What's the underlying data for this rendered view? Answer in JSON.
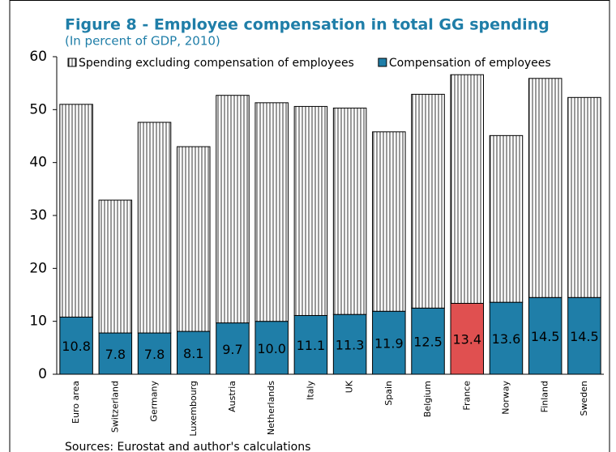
{
  "chart_data": {
    "type": "stacked-bar",
    "title": "Figure 8 - Employee compensation in total GG spending",
    "subtitle": "(In percent of GDP, 2010)",
    "source": "Sources: Eurostat and author's calculations",
    "categories": [
      "Euro area",
      "Switzerland",
      "Germany",
      "Luxembourg",
      "Austria",
      "Netherlands",
      "Italy",
      "UK",
      "Spain",
      "Belgium",
      "France",
      "Norway",
      "Finland",
      "Sweden"
    ],
    "series": [
      {
        "name": "Compensation of employees",
        "color": "#1f7ea8",
        "point_colors": [
          "#1f7ea8",
          "#1f7ea8",
          "#1f7ea8",
          "#1f7ea8",
          "#1f7ea8",
          "#1f7ea8",
          "#1f7ea8",
          "#1f7ea8",
          "#1f7ea8",
          "#1f7ea8",
          "#e05050",
          "#1f7ea8",
          "#1f7ea8",
          "#1f7ea8"
        ],
        "values": [
          10.8,
          7.8,
          7.8,
          8.1,
          9.7,
          10.0,
          11.1,
          11.3,
          11.9,
          12.5,
          13.4,
          13.6,
          14.5,
          14.5
        ],
        "value_labels": [
          "10.8",
          "7.8",
          "7.8",
          "8.1",
          "9.7",
          "10.0",
          "11.1",
          "11.3",
          "11.9",
          "12.5",
          "13.4",
          "13.6",
          "14.5",
          "14.5"
        ]
      },
      {
        "name": "Spending excluding compensation of employees",
        "color": "#ffffff",
        "hatch": "vertical",
        "values": [
          40.2,
          25.1,
          39.8,
          34.9,
          43.0,
          41.3,
          39.5,
          39.0,
          33.9,
          40.4,
          43.2,
          31.5,
          41.4,
          37.8
        ]
      }
    ],
    "legend_order": [
      1,
      0
    ],
    "ylim": [
      0,
      60
    ],
    "yticks": [
      0,
      10,
      20,
      30,
      40,
      50,
      60
    ]
  }
}
